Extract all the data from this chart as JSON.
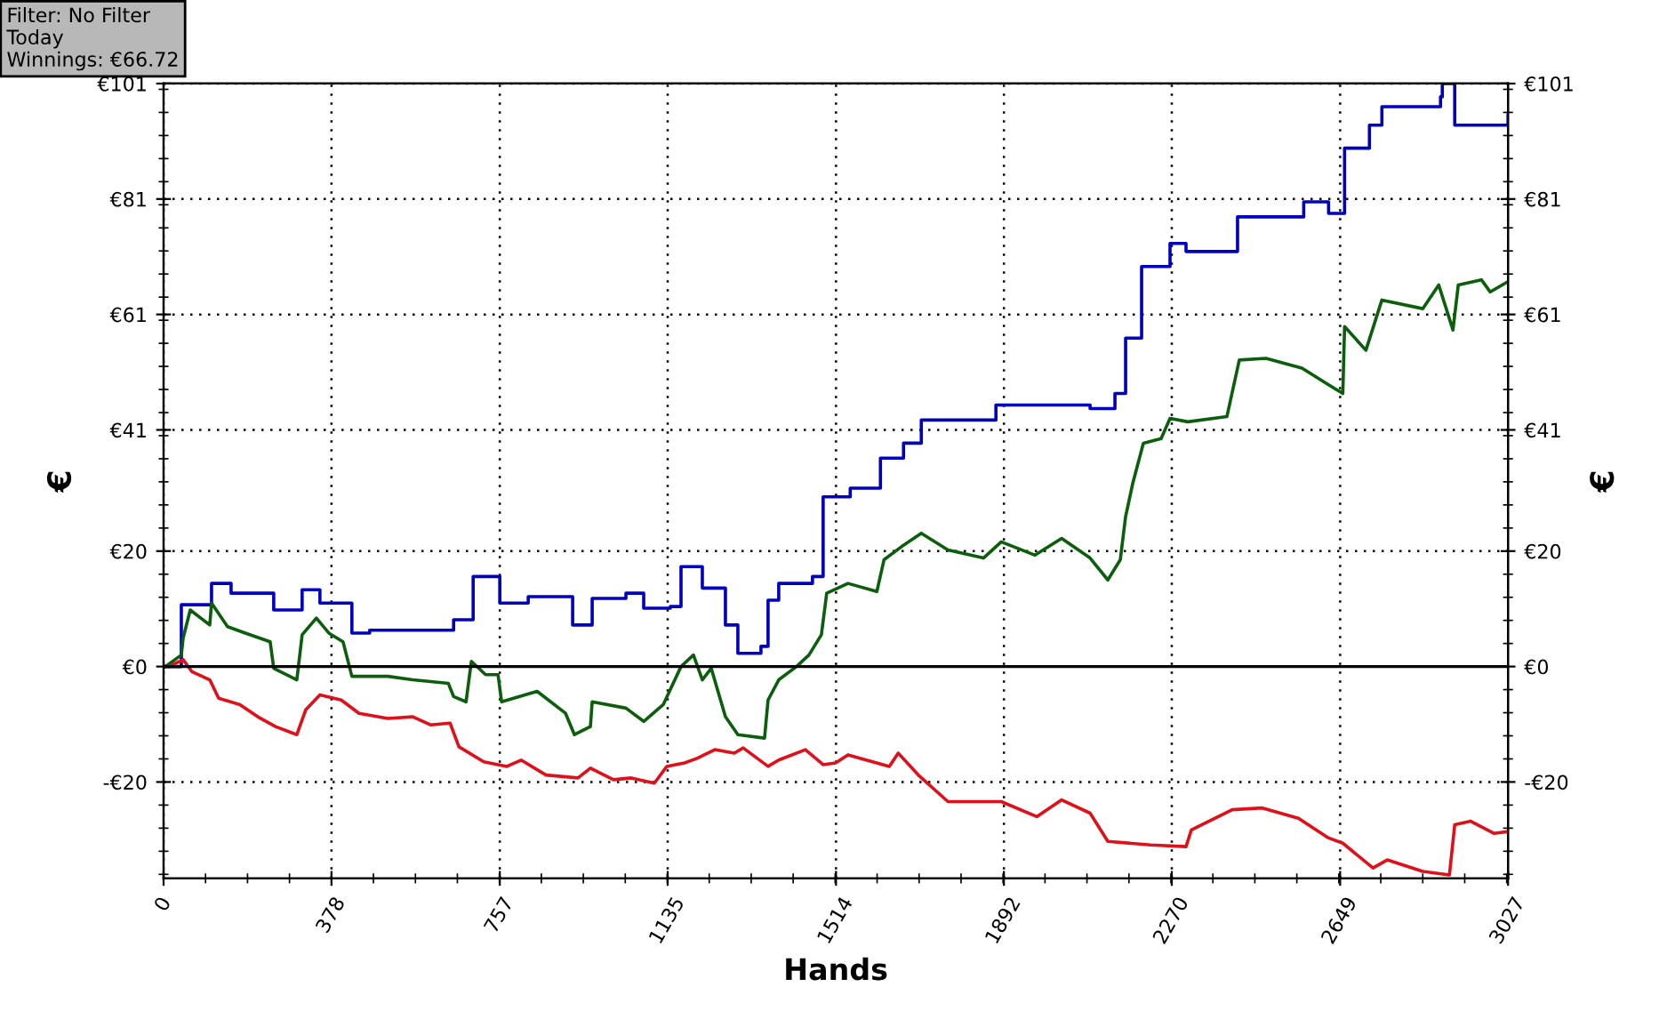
{
  "chart_data": {
    "type": "line",
    "xlabel": "Hands",
    "ylabel": "€",
    "y2label": "€",
    "annotations": [
      "Filter: No Filter",
      "Today",
      "Winnings: €66.72"
    ],
    "xlim": [
      0,
      3027
    ],
    "xticks": [
      0,
      378,
      757,
      1135,
      1514,
      1892,
      2270,
      2649,
      3027
    ],
    "ylim": [
      -36.7,
      101
    ],
    "yticks": [
      {
        "value": -20,
        "label": "-€20"
      },
      {
        "value": 0,
        "label": "€0"
      },
      {
        "value": 20,
        "label": "€20"
      },
      {
        "value": 41,
        "label": "€41"
      },
      {
        "value": 61,
        "label": "€61"
      },
      {
        "value": 81,
        "label": "€81"
      },
      {
        "value": 101,
        "label": "€101"
      }
    ],
    "y2lim": [
      -36.7,
      101
    ],
    "y2ticks": [
      {
        "value": -20,
        "label": "-€20"
      },
      {
        "value": 0,
        "label": "€0"
      },
      {
        "value": 20,
        "label": "€20"
      },
      {
        "value": 41,
        "label": "€41"
      },
      {
        "value": 61,
        "label": "€61"
      },
      {
        "value": 81,
        "label": "€81"
      },
      {
        "value": 101,
        "label": "€101"
      }
    ],
    "grid": true,
    "legend": false,
    "ref_lines": [
      {
        "axis": "y",
        "value": 0,
        "color": "#000000"
      }
    ],
    "series": [
      {
        "type": "step",
        "color": "#0000c0",
        "x": [
          0,
          40,
          108,
          152,
          248,
          312,
          352,
          424,
          464,
          653,
          697,
          757,
          821,
          921,
          965,
          1041,
          1081,
          1141,
          1165,
          1213,
          1265,
          1293,
          1345,
          1361,
          1385,
          1461,
          1485,
          1546,
          1614,
          1666,
          1706,
          1874,
          2086,
          2142,
          2166,
          2202,
          2246,
          2266,
          2302,
          2418,
          2567,
          2623,
          2659,
          2715,
          2743,
          2875,
          2879,
          2903,
          2907,
          2967,
          3027
        ],
        "values": [
          0,
          10.7,
          14.4,
          12.7,
          9.8,
          13.3,
          11.0,
          5.8,
          6.3,
          8.1,
          15.6,
          11.0,
          12.1,
          7.2,
          11.8,
          12.7,
          10.1,
          10.4,
          17.3,
          13.6,
          7.2,
          2.3,
          3.5,
          11.5,
          14.4,
          15.6,
          29.4,
          30.9,
          36.1,
          38.7,
          42.7,
          45.3,
          44.7,
          47.3,
          56.9,
          69.3,
          69.3,
          73.3,
          71.9,
          77.9,
          80.5,
          78.5,
          89.8,
          93.8,
          97.0,
          98.7,
          101,
          101,
          93.8,
          93.8,
          95.5
        ]
      },
      {
        "color": "#0b5e0b",
        "x": [
          4,
          40,
          44,
          60,
          104,
          108,
          144,
          184,
          240,
          248,
          300,
          312,
          344,
          372,
          404,
          424,
          505,
          561,
          641,
          653,
          681,
          693,
          725,
          753,
          761,
          841,
          905,
          925,
          961,
          965,
          1041,
          1081,
          1125,
          1165,
          1193,
          1213,
          1233,
          1265,
          1293,
          1353,
          1361,
          1385,
          1425,
          1453,
          1481,
          1493,
          1541,
          1606,
          1622,
          1662,
          1706,
          1766,
          1846,
          1886,
          1962,
          2022,
          2086,
          2126,
          2154,
          2166,
          2182,
          2206,
          2246,
          2266,
          2306,
          2394,
          2422,
          2482,
          2563,
          2623,
          2655,
          2659,
          2707,
          2743,
          2835,
          2871,
          2903,
          2915,
          2967,
          2987,
          3027
        ],
        "values": [
          0,
          2.0,
          4.9,
          9.8,
          7.2,
          11.0,
          6.9,
          5.8,
          4.3,
          -0.3,
          -2.3,
          5.5,
          8.4,
          5.8,
          4.3,
          -1.7,
          -1.7,
          -2.3,
          -2.9,
          -5.2,
          -6.1,
          0.9,
          -1.4,
          -1.4,
          -6.1,
          -4.3,
          -8.1,
          -11.8,
          -10.4,
          -6.1,
          -7.2,
          -9.5,
          -6.6,
          0,
          2.0,
          -2.3,
          -0.3,
          -8.7,
          -11.8,
          -12.4,
          -5.8,
          -2.3,
          0,
          2.0,
          5.5,
          12.7,
          14.4,
          13.0,
          18.5,
          20.8,
          23.1,
          20.2,
          18.8,
          21.6,
          19.3,
          22.2,
          18.8,
          15.0,
          18.5,
          26.0,
          31.7,
          38.7,
          39.5,
          43.0,
          42.4,
          43.3,
          53.1,
          53.4,
          51.7,
          48.8,
          47.3,
          58.9,
          54.8,
          63.5,
          62.0,
          66.1,
          58.3,
          66.1,
          67.0,
          64.9,
          66.7
        ]
      },
      {
        "color": "#e0101a",
        "x": [
          12,
          44,
          64,
          104,
          124,
          172,
          212,
          252,
          300,
          320,
          352,
          400,
          440,
          505,
          561,
          601,
          645,
          665,
          721,
          773,
          805,
          861,
          933,
          961,
          1013,
          1053,
          1105,
          1133,
          1173,
          1201,
          1241,
          1285,
          1305,
          1361,
          1385,
          1445,
          1485,
          1513,
          1541,
          1634,
          1654,
          1702,
          1766,
          1886,
          1966,
          2022,
          2086,
          2126,
          2222,
          2302,
          2314,
          2406,
          2474,
          2555,
          2623,
          2655,
          2723,
          2755,
          2835,
          2895,
          2907,
          2943,
          2995,
          3027
        ],
        "values": [
          0,
          1.2,
          -0.9,
          -2.3,
          -5.5,
          -6.6,
          -8.7,
          -10.4,
          -11.8,
          -7.5,
          -4.9,
          -5.8,
          -8.1,
          -9.0,
          -8.7,
          -10.1,
          -9.8,
          -13.9,
          -16.5,
          -17.3,
          -16.2,
          -18.8,
          -19.3,
          -17.6,
          -19.6,
          -19.3,
          -20.2,
          -17.3,
          -16.7,
          -15.9,
          -14.4,
          -15.0,
          -14.1,
          -17.3,
          -16.2,
          -14.4,
          -17.0,
          -16.7,
          -15.3,
          -17.3,
          -15.0,
          -19.0,
          -23.4,
          -23.4,
          -26.0,
          -23.1,
          -25.4,
          -30.3,
          -30.9,
          -31.2,
          -28.3,
          -24.8,
          -24.5,
          -26.3,
          -29.7,
          -30.6,
          -34.9,
          -33.5,
          -35.5,
          -36.1,
          -27.4,
          -26.8,
          -28.9,
          -28.6
        ]
      }
    ]
  }
}
